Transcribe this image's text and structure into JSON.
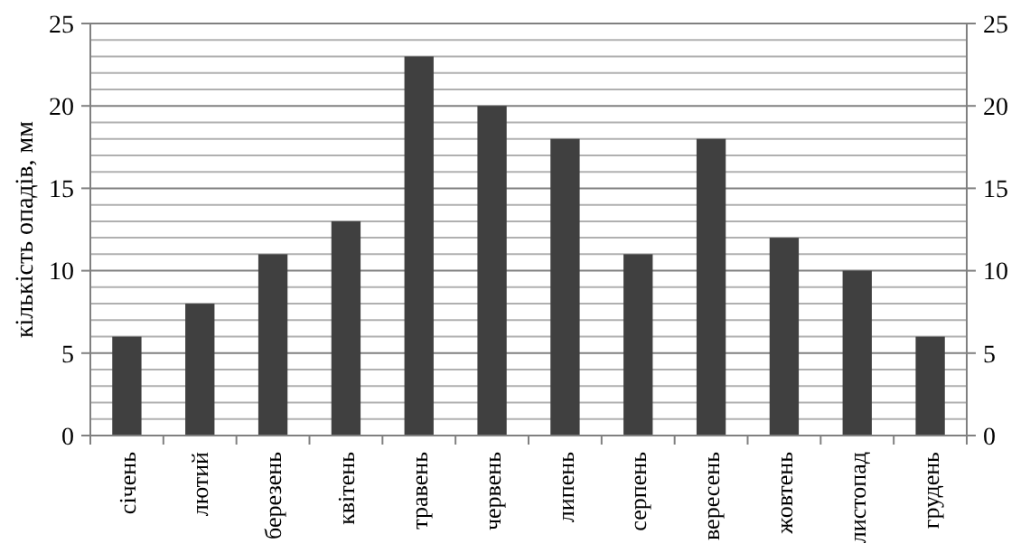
{
  "chart_data": {
    "type": "bar",
    "ylabel": "кількість опадів, мм",
    "categories": [
      "січень",
      "лютий",
      "березень",
      "квітень",
      "травень",
      "червень",
      "липень",
      "серпень",
      "вересень",
      "жовтень",
      "листопад",
      "грудень"
    ],
    "values": [
      6,
      8,
      11,
      13,
      23,
      20,
      18,
      11,
      18,
      12,
      10,
      6
    ],
    "color": "#404040",
    "ylim": [
      0,
      25
    ],
    "yticks": [
      0,
      {
        "value": 1,
        "label": null
      },
      {
        "value": 2,
        "label": null
      },
      {
        "value": 3,
        "label": null
      },
      {
        "value": 4,
        "label": null
      },
      5,
      {
        "value": 6,
        "label": null
      },
      {
        "value": 7,
        "label": null
      },
      {
        "value": 8,
        "label": null
      },
      {
        "value": 9,
        "label": null
      },
      10,
      {
        "value": 11,
        "label": null
      },
      {
        "value": 12,
        "label": null
      },
      {
        "value": 13,
        "label": null
      },
      {
        "value": 14,
        "label": null
      },
      15,
      {
        "value": 16,
        "label": null
      },
      {
        "value": 17,
        "label": null
      },
      {
        "value": 18,
        "label": null
      },
      {
        "value": 19,
        "label": null
      },
      20,
      {
        "value": 21,
        "label": null
      },
      {
        "value": 22,
        "label": null
      },
      {
        "value": 23,
        "label": null
      },
      {
        "value": 24,
        "label": null
      },
      25
    ],
    "y2lim": [
      0,
      25
    ],
    "y2ticks": [
      0,
      5,
      10,
      15,
      20,
      25
    ],
    "grid": "y"
  }
}
